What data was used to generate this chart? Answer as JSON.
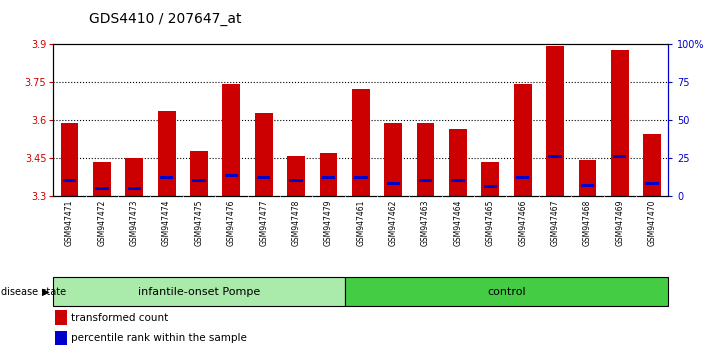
{
  "title": "GDS4410 / 207647_at",
  "samples": [
    "GSM947471",
    "GSM947472",
    "GSM947473",
    "GSM947474",
    "GSM947475",
    "GSM947476",
    "GSM947477",
    "GSM947478",
    "GSM947479",
    "GSM947461",
    "GSM947462",
    "GSM947463",
    "GSM947464",
    "GSM947465",
    "GSM947466",
    "GSM947467",
    "GSM947468",
    "GSM947469",
    "GSM947470"
  ],
  "transformed_count": [
    3.585,
    3.435,
    3.45,
    3.635,
    3.475,
    3.74,
    3.625,
    3.455,
    3.47,
    3.72,
    3.585,
    3.585,
    3.565,
    3.435,
    3.74,
    3.89,
    3.44,
    3.875,
    3.545
  ],
  "percentile_rank": [
    10,
    5,
    5,
    12,
    10,
    13,
    12,
    10,
    12,
    12,
    8,
    10,
    10,
    6,
    12,
    26,
    7,
    26,
    8
  ],
  "ymin": 3.3,
  "ymax": 3.9,
  "yticks": [
    3.3,
    3.45,
    3.6,
    3.75,
    3.9
  ],
  "right_yticks": [
    0,
    25,
    50,
    75,
    100
  ],
  "right_yticklabels": [
    "0",
    "25",
    "50",
    "75",
    "100%"
  ],
  "group1_label": "infantile-onset Pompe",
  "group2_label": "control",
  "g1_count": 9,
  "g2_count": 10,
  "disease_state_label": "disease state",
  "legend_items": [
    "transformed count",
    "percentile rank within the sample"
  ],
  "legend_colors": [
    "#cc0000",
    "#0000cc"
  ],
  "bar_color": "#cc0000",
  "percentile_color": "#0000cc",
  "bar_width": 0.55,
  "tick_bg": "#cccccc",
  "group1_bg": "#aaeaaa",
  "group2_bg": "#44cc44",
  "title_fontsize": 10,
  "tick_fontsize": 7,
  "sample_fontsize": 5.5,
  "legend_fontsize": 7.5
}
